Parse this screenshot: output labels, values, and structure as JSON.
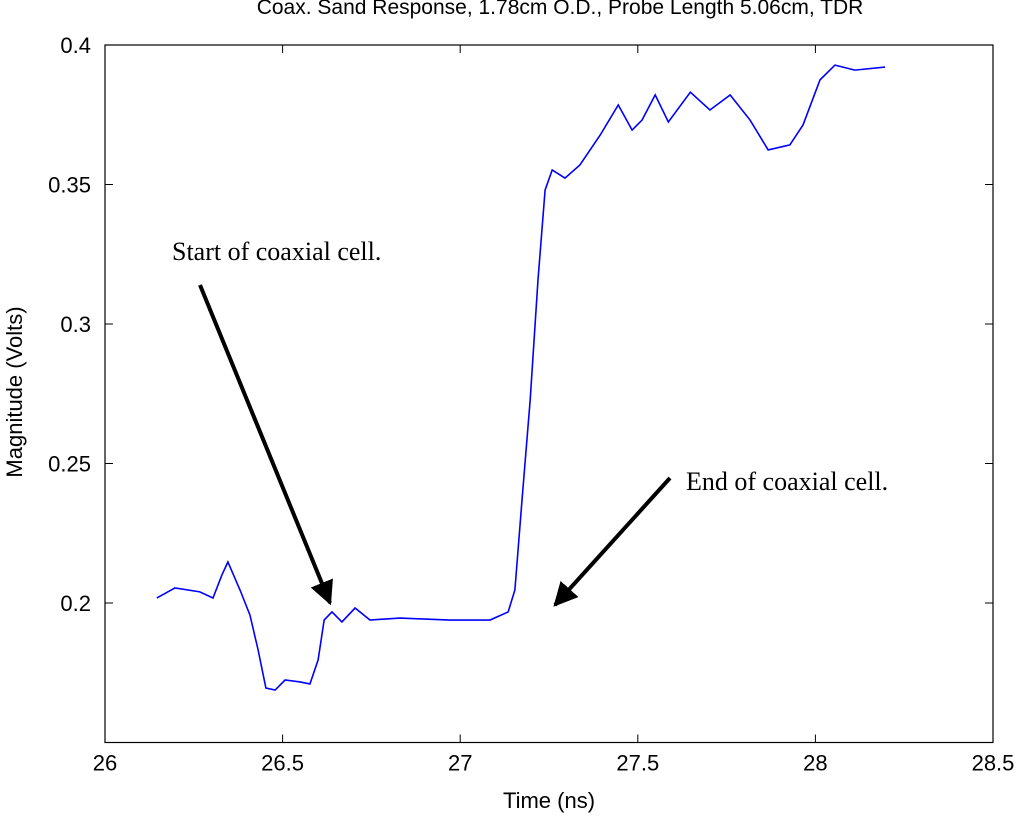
{
  "chart_data": {
    "type": "line",
    "title": "Coax. Sand Response, 1.78cm O.D., Probe Length 5.06cm, TDR",
    "x_label": "Time (ns)",
    "y_label": "Magnitude (Volts)",
    "xlim": [
      26,
      28.5
    ],
    "ylim": [
      0.15,
      0.4
    ],
    "xticks": [
      26,
      26.5,
      27,
      27.5,
      28,
      28.5
    ],
    "yticks": [
      0.2,
      0.25,
      0.3,
      0.35,
      0.4
    ],
    "grid": false,
    "series": [
      {
        "color": "#0000ff",
        "x": [
          26.146,
          26.197,
          26.267,
          26.304,
          26.329,
          26.346,
          26.38,
          26.408,
          26.431,
          26.453,
          26.479,
          26.507,
          26.549,
          26.577,
          26.6,
          26.617,
          26.639,
          26.667,
          26.704,
          26.746,
          26.83,
          26.971,
          27.084,
          27.135,
          27.154,
          27.174,
          27.197,
          27.219,
          27.239,
          27.259,
          27.295,
          27.337,
          27.394,
          27.445,
          27.484,
          27.512,
          27.549,
          27.586,
          27.648,
          27.703,
          27.76,
          27.816,
          27.867,
          27.928,
          27.965,
          28.013,
          28.055,
          28.111,
          28.196
        ],
        "values": [
          0.2018,
          0.2054,
          0.204,
          0.2018,
          0.21,
          0.2147,
          0.2047,
          0.1957,
          0.1832,
          0.1695,
          0.1688,
          0.1724,
          0.1717,
          0.171,
          0.1796,
          0.1939,
          0.1968,
          0.1932,
          0.1982,
          0.1939,
          0.1946,
          0.1939,
          0.1939,
          0.1968,
          0.2047,
          0.2369,
          0.2728,
          0.3158,
          0.348,
          0.3552,
          0.3523,
          0.357,
          0.3677,
          0.3785,
          0.3695,
          0.3731,
          0.3821,
          0.3724,
          0.3831,
          0.3767,
          0.3821,
          0.3731,
          0.3624,
          0.3642,
          0.3713,
          0.3875,
          0.3928,
          0.391,
          0.3921
        ]
      }
    ],
    "annotations": [
      {
        "text": "Start of coaxial cell."
      },
      {
        "text": "End of coaxial cell."
      }
    ]
  }
}
